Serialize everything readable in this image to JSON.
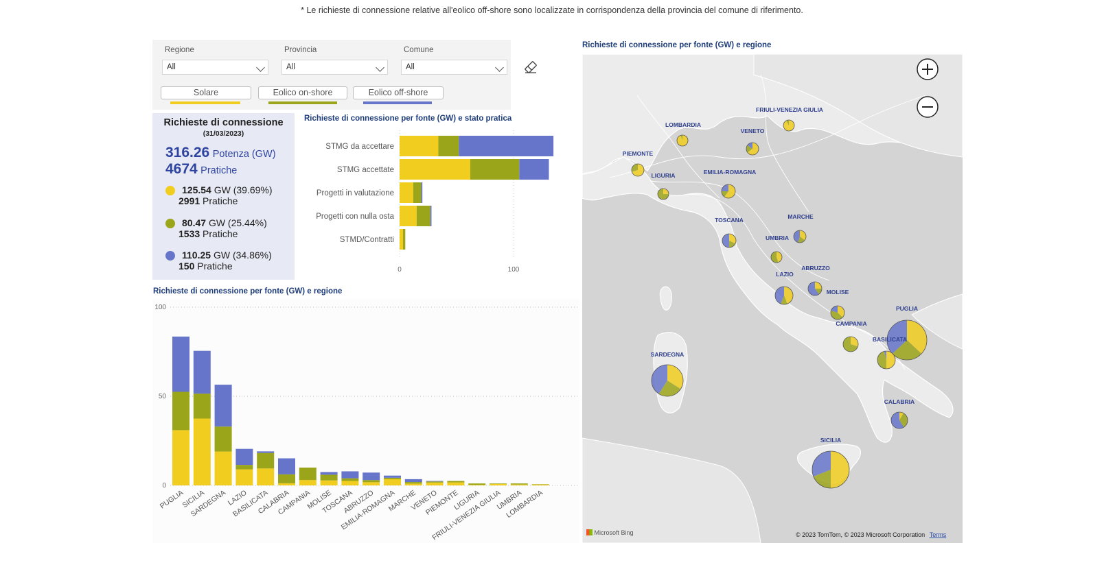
{
  "note": "* Le richieste di connessione relative all'eolico off-shore sono localizzate in corrispondenza della provincia del comune di riferimento.",
  "colors": {
    "solare": "#f0cd1e",
    "onshore": "#9ba51a",
    "offshore": "#6675c9",
    "title": "#1f3d7a",
    "kpi_bg": "#e7eaf4"
  },
  "filters": {
    "regione": {
      "label": "Regione",
      "value": "All"
    },
    "provincia": {
      "label": "Provincia",
      "value": "All"
    },
    "comune": {
      "label": "Comune",
      "value": "All"
    },
    "clear_icon": "eraser-icon"
  },
  "sources": [
    {
      "label": "Solare",
      "color": "#f0cd1e"
    },
    {
      "label": "Eolico on-shore",
      "color": "#9ba51a"
    },
    {
      "label": "Eolico off-shore",
      "color": "#6675c9"
    }
  ],
  "kpi": {
    "title": "Richieste di connessione",
    "date": "(31/03/2023)",
    "total_power": "316.26",
    "total_power_label": "Potenza (GW)",
    "total_count": "4674",
    "total_count_label": "Pratiche",
    "items": [
      {
        "gw": "125.54",
        "gw_label": "GW (39.69%)",
        "count": "2991",
        "count_label": "Pratiche",
        "color": "#f0cd1e"
      },
      {
        "gw": "80.47",
        "gw_label": "GW (25.44%)",
        "count": "1533",
        "count_label": "Pratiche",
        "color": "#9ba51a"
      },
      {
        "gw": "110.25",
        "gw_label": "GW (34.86%)",
        "count": "150",
        "count_label": "Pratiche",
        "color": "#6675c9"
      }
    ]
  },
  "stato_chart_title": "Richieste di connessione per fonte (GW) e stato pratica",
  "regione_chart_title": "Richieste di connessione per fonte (GW) e regione",
  "map": {
    "title": "Richieste di connessione per fonte (GW) e regione",
    "attribution": "© 2023 TomTom, © 2023 Microsoft Corporation",
    "terms": "Terms",
    "brand": "Microsoft Bing",
    "zoom_in_icon": "zoom-in-icon",
    "zoom_out_icon": "zoom-out-icon"
  },
  "chart_data": [
    {
      "type": "bar",
      "orientation": "horizontal",
      "stacked": true,
      "title": "Richieste di connessione per fonte (GW) e stato pratica",
      "categories": [
        "STMG da accettare",
        "STMG accettate",
        "Progetti in valutazione",
        "Progetti con nulla osta",
        "STMD/Contratti"
      ],
      "series": [
        {
          "name": "Solare",
          "values": [
            34,
            62,
            12,
            15,
            3
          ]
        },
        {
          "name": "Eolico on-shore",
          "values": [
            18,
            43,
            7,
            12,
            2
          ]
        },
        {
          "name": "Eolico off-shore",
          "values": [
            83,
            26,
            1,
            1,
            0
          ]
        }
      ],
      "xlim": [
        0,
        150
      ],
      "xticks": [
        0,
        100
      ]
    },
    {
      "type": "bar",
      "stacked": true,
      "title": "Richieste di connessione per fonte (GW) e regione",
      "categories": [
        "PUGLIA",
        "SICILIA",
        "SARDEGNA",
        "LAZIO",
        "BASILICATA",
        "CALABRIA",
        "CAMPANIA",
        "MOLISE",
        "TOSCANA",
        "ABRUZZO",
        "EMILIA-ROMAGNA",
        "MARCHE",
        "VENETO",
        "PIEMONTE",
        "LIGURIA",
        "FRIULI-VENEZIA GIULIA",
        "UMBRIA",
        "LOMBARDIA"
      ],
      "series": [
        {
          "name": "Solare",
          "values": [
            31,
            37.5,
            19,
            9,
            9.5,
            1.2,
            3,
            2.8,
            2.5,
            1.8,
            3.5,
            1,
            1.6,
            1.7,
            0.3,
            0.8,
            0.5,
            0.5
          ]
        },
        {
          "name": "Eolico on-shore",
          "values": [
            21.5,
            14,
            14,
            2.5,
            8.7,
            5,
            7,
            3.2,
            1.5,
            1.2,
            0.8,
            0.9,
            0.6,
            0.8,
            0.8,
            0.3,
            0.6,
            0.2
          ]
        },
        {
          "name": "Eolico off-shore",
          "values": [
            31,
            24,
            23.5,
            9,
            0.9,
            9,
            0,
            1.5,
            3.9,
            4.2,
            1.2,
            1.6,
            0.3,
            0,
            0,
            0,
            0,
            0
          ]
        }
      ],
      "ylim": [
        0,
        100
      ],
      "yticks": [
        0,
        50,
        100
      ]
    }
  ],
  "map_regions": [
    {
      "name": "LOMBARDIA",
      "slices": [
        0.95,
        0.05,
        0
      ]
    },
    {
      "name": "FRIULI-VENEZIA GIULIA",
      "slices": [
        0.92,
        0.08,
        0
      ]
    },
    {
      "name": "VENETO",
      "slices": [
        0.65,
        0.2,
        0.15
      ]
    },
    {
      "name": "PIEMONTE",
      "slices": [
        0.7,
        0.3,
        0
      ]
    },
    {
      "name": "LIGURIA",
      "slices": [
        0.25,
        0.75,
        0
      ]
    },
    {
      "name": "EMILIA-ROMAGNA",
      "slices": [
        0.6,
        0.15,
        0.25
      ]
    },
    {
      "name": "TOSCANA",
      "slices": [
        0.32,
        0.18,
        0.5
      ]
    },
    {
      "name": "MARCHE",
      "slices": [
        0.35,
        0.2,
        0.45
      ]
    },
    {
      "name": "UMBRIA",
      "slices": [
        0.45,
        0.55,
        0
      ]
    },
    {
      "name": "LAZIO",
      "slices": [
        0.44,
        0.12,
        0.44
      ]
    },
    {
      "name": "ABRUZZO",
      "slices": [
        0.25,
        0.15,
        0.6
      ]
    },
    {
      "name": "MOLISE",
      "slices": [
        0.37,
        0.43,
        0.2
      ]
    },
    {
      "name": "CAMPANIA",
      "slices": [
        0.3,
        0.7,
        0
      ]
    },
    {
      "name": "PUGLIA",
      "slices": [
        0.37,
        0.26,
        0.37
      ]
    },
    {
      "name": "BASILICATA",
      "slices": [
        0.5,
        0.46,
        0.04
      ]
    },
    {
      "name": "SARDEGNA",
      "slices": [
        0.34,
        0.25,
        0.41
      ]
    },
    {
      "name": "CALABRIA",
      "slices": [
        0.08,
        0.33,
        0.59
      ]
    },
    {
      "name": "SICILIA",
      "slices": [
        0.5,
        0.19,
        0.31
      ]
    }
  ]
}
